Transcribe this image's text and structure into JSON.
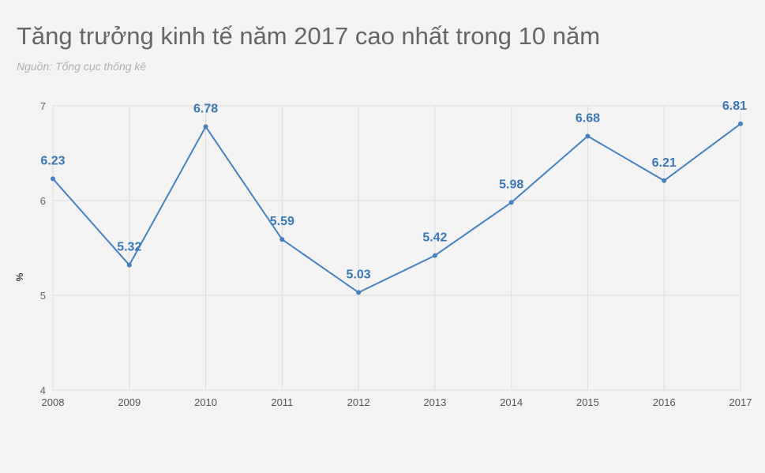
{
  "chart_data": {
    "type": "line",
    "title": "Tăng trưởng kinh tế năm 2017 cao nhất trong 10 năm",
    "subtitle": "Nguồn: Tổng cục thống kê",
    "ylabel": "%",
    "xlabel": "",
    "categories": [
      "2008",
      "2009",
      "2010",
      "2011",
      "2012",
      "2013",
      "2014",
      "2015",
      "2016",
      "2017"
    ],
    "values": [
      6.23,
      5.32,
      6.78,
      5.59,
      5.03,
      5.42,
      5.98,
      6.68,
      6.21,
      6.81
    ],
    "data_labels": [
      "6.23",
      "5.32",
      "6.78",
      "5.59",
      "5.03",
      "5.42",
      "5.98",
      "6.68",
      "6.21",
      "6.81"
    ],
    "ylim": [
      4,
      7
    ],
    "yticks": [
      "4",
      "5",
      "6",
      "7"
    ],
    "grid": true,
    "colors": {
      "line": "#4682bf",
      "label": "#3a78b5",
      "grid": "#dcdcdc",
      "background": "#f3f3f3"
    }
  }
}
